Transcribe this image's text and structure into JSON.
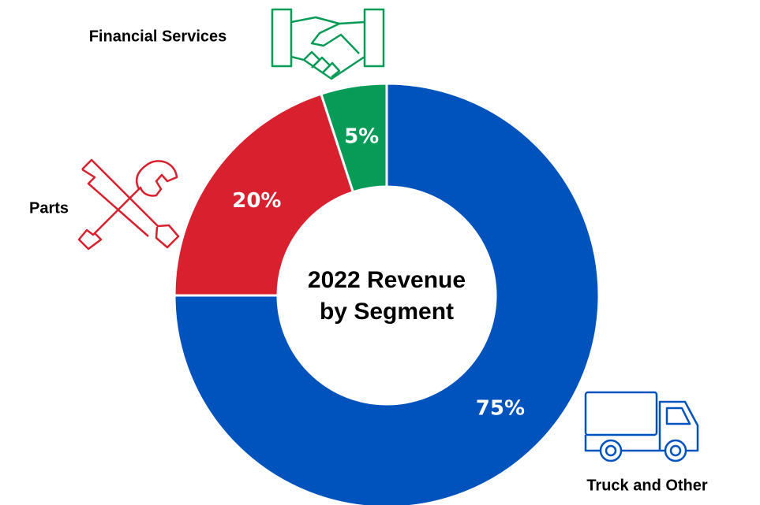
{
  "chart_data": {
    "type": "pie",
    "title": "2022 Revenue by Segment",
    "categories": [
      "Truck and Other",
      "Parts",
      "Financial Services"
    ],
    "values": [
      75,
      20,
      5
    ],
    "value_labels": [
      "75%",
      "20%",
      "5%"
    ],
    "colors": [
      "#0052bd",
      "#d9202f",
      "#079b57"
    ]
  }
}
